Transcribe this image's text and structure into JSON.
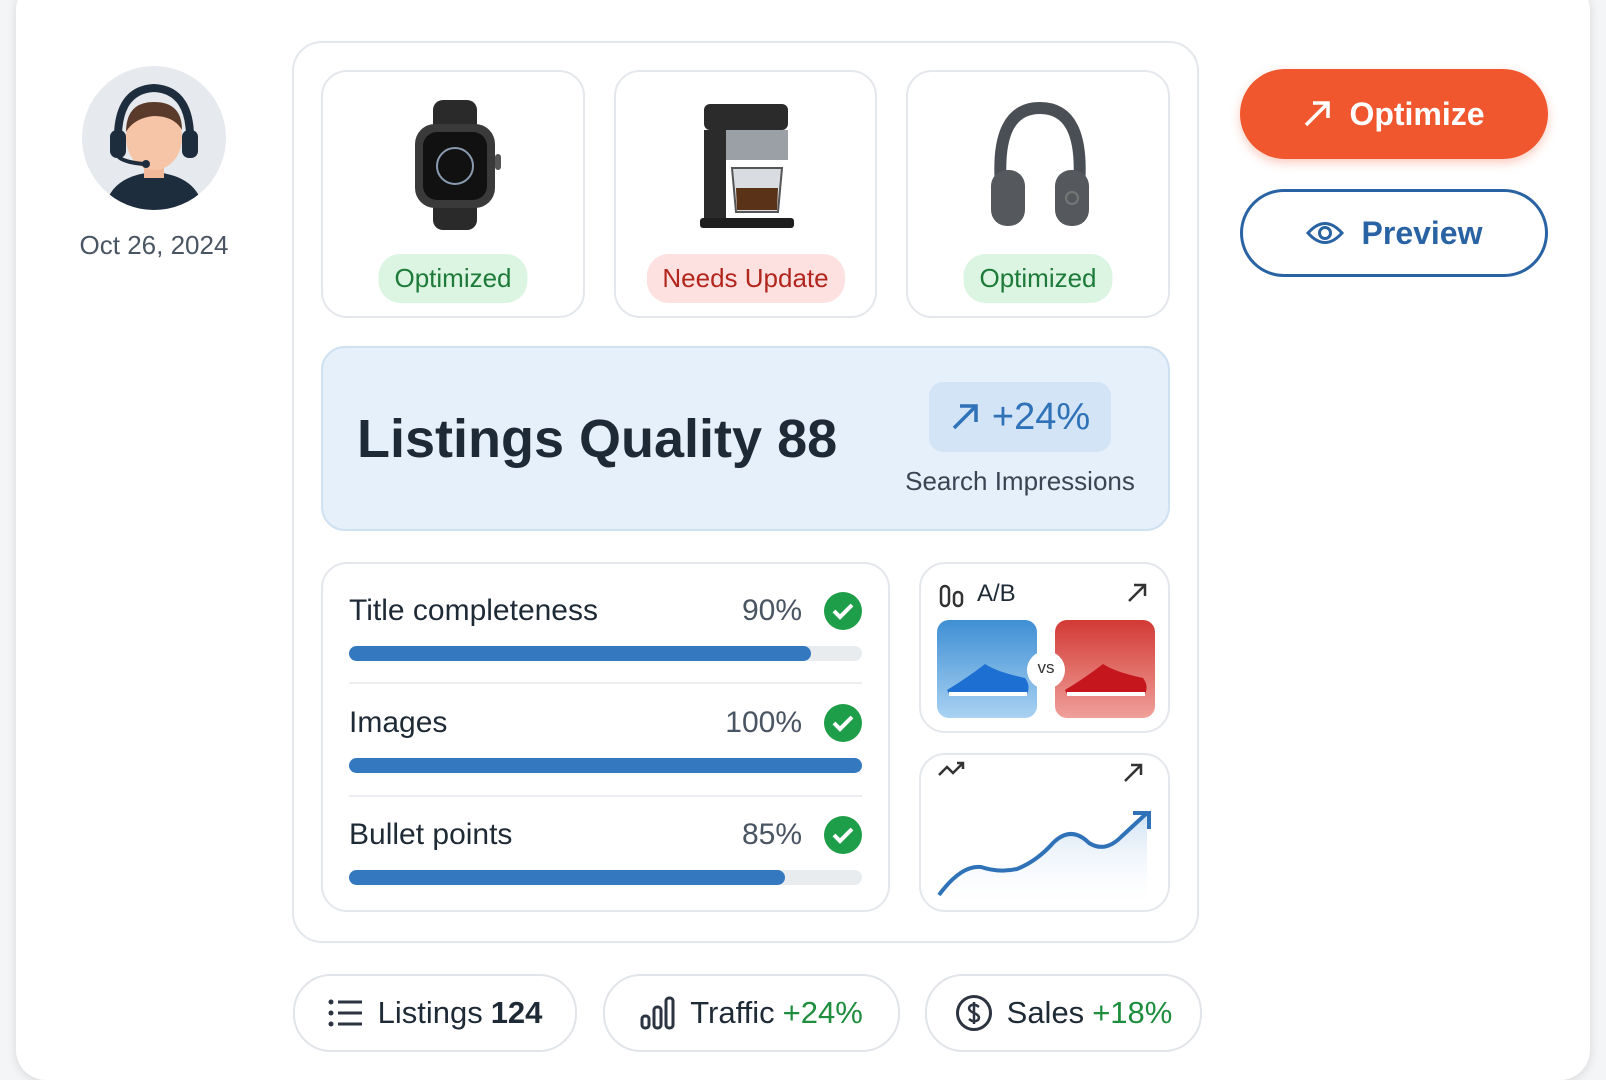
{
  "profile": {
    "date": "Oct 26, 2024"
  },
  "products": [
    {
      "status": "Optimized"
    },
    {
      "status": "Needs Update"
    },
    {
      "status": "Optimized"
    }
  ],
  "quality": {
    "label": "Listings Quality",
    "score": 88,
    "change": "+24%",
    "change_label": "Search Impressions"
  },
  "checks": [
    {
      "label": "Title completeness",
      "value": 90,
      "value_label": "90%"
    },
    {
      "label": "Images",
      "value": 100,
      "value_label": "100%"
    },
    {
      "label": "Bullet points",
      "value": 85,
      "value_label": "85%"
    }
  ],
  "ab_test": {
    "title": "A/B",
    "vs": "vs"
  },
  "actions": {
    "primary": "Optimize",
    "secondary": "Preview"
  },
  "stats": [
    {
      "label": "Listings",
      "value": 124
    },
    {
      "label": "Traffic",
      "value": "+24%"
    },
    {
      "label": "Sales",
      "value": "+18%"
    }
  ]
}
